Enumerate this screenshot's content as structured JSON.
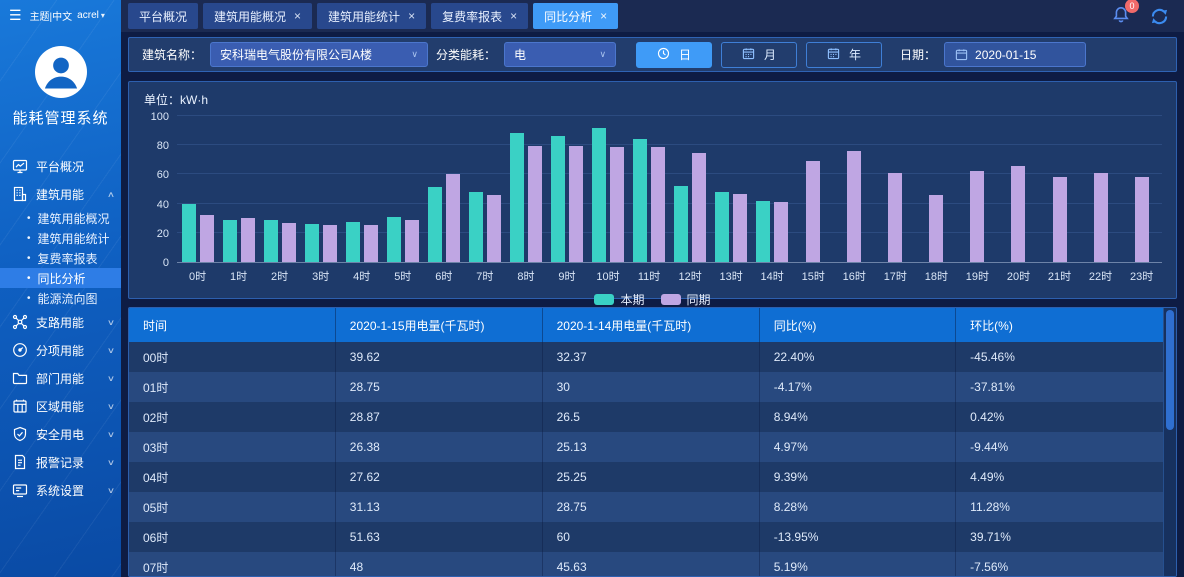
{
  "app": {
    "title": "能耗管理系统"
  },
  "icons": {
    "hamburger": "☰",
    "caret_down": "▾",
    "chevron_up": "∧",
    "chevron_down": "∨",
    "select_caret": "∨",
    "close": "×",
    "bullet": "•"
  },
  "topbar": {
    "theme_label": "主题|中文",
    "user": "acrel",
    "notification_count": "0",
    "tabs": [
      {
        "label": "平台概况",
        "closable": false,
        "active": false
      },
      {
        "label": "建筑用能概况",
        "closable": true,
        "active": false
      },
      {
        "label": "建筑用能统计",
        "closable": true,
        "active": false
      },
      {
        "label": "复费率报表",
        "closable": true,
        "active": false
      },
      {
        "label": "同比分析",
        "closable": true,
        "active": true
      }
    ]
  },
  "sidebar": {
    "items": [
      {
        "label": "平台概况",
        "icon": "monitor-icon",
        "chevron": false
      },
      {
        "label": "建筑用能",
        "icon": "building-icon",
        "chevron": true,
        "expanded": true,
        "children": [
          "建筑用能概况",
          "建筑用能统计",
          "复费率报表",
          "同比分析",
          "能源流向图"
        ],
        "active_child": "同比分析"
      },
      {
        "label": "支路用能",
        "icon": "branch-icon",
        "chevron": true
      },
      {
        "label": "分项用能",
        "icon": "gauge-icon",
        "chevron": true
      },
      {
        "label": "部门用能",
        "icon": "folder-icon",
        "chevron": true
      },
      {
        "label": "区域用能",
        "icon": "region-icon",
        "chevron": true
      },
      {
        "label": "安全用电",
        "icon": "shield-icon",
        "chevron": true
      },
      {
        "label": "报警记录",
        "icon": "alarm-doc-icon",
        "chevron": true
      },
      {
        "label": "系统设置",
        "icon": "settings-icon",
        "chevron": true
      }
    ]
  },
  "filters": {
    "building_label": "建筑名称：",
    "building_value": "安科瑞电气股份有限公司A楼",
    "energy_label": "分类能耗：",
    "energy_value": "电",
    "period_buttons": [
      {
        "label": "日",
        "icon": "clock-icon",
        "active": true
      },
      {
        "label": "月",
        "icon": "calendar-icon",
        "active": false
      },
      {
        "label": "年",
        "icon": "calendar-icon",
        "active": false
      }
    ],
    "date_label": "日期：",
    "date_value": "2020-01-15"
  },
  "chart_data": {
    "type": "bar",
    "title": "单位：kW·h",
    "categories": [
      "0时",
      "1时",
      "2时",
      "3时",
      "4时",
      "5时",
      "6时",
      "7时",
      "8时",
      "9时",
      "10时",
      "11时",
      "12时",
      "13时",
      "14时",
      "15时",
      "16时",
      "17时",
      "18时",
      "19时",
      "20时",
      "21时",
      "22时",
      "23时"
    ],
    "series": [
      {
        "name": "本期",
        "color": "#3ad1c5",
        "values": [
          39.62,
          28.75,
          28.87,
          26.38,
          27.62,
          31.13,
          51.63,
          48,
          88.5,
          86.5,
          92,
          84,
          52,
          48,
          42,
          null,
          null,
          null,
          null,
          null,
          null,
          null,
          null,
          null
        ]
      },
      {
        "name": "同期",
        "color": "#bfa6e3",
        "values": [
          32.37,
          30,
          26.5,
          25.13,
          25.25,
          28.75,
          60,
          45.63,
          79.5,
          79.5,
          78.5,
          78.5,
          74.5,
          46.5,
          41,
          69,
          76,
          61,
          46,
          62,
          65.5,
          58.5,
          61,
          58.5
        ]
      }
    ],
    "ylim": [
      0,
      100
    ],
    "yticks": [
      0,
      20,
      40,
      60,
      80,
      100
    ],
    "grid": true,
    "legend_position": "bottom"
  },
  "table": {
    "headers": [
      "时间",
      "2020-1-15用电量(千瓦时)",
      "2020-1-14用电量(千瓦时)",
      "同比(%)",
      "环比(%)"
    ],
    "rows": [
      [
        "00时",
        "39.62",
        "32.37",
        "22.40%",
        "-45.46%"
      ],
      [
        "01时",
        "28.75",
        "30",
        "-4.17%",
        "-37.81%"
      ],
      [
        "02时",
        "28.87",
        "26.5",
        "8.94%",
        "0.42%"
      ],
      [
        "03时",
        "26.38",
        "25.13",
        "4.97%",
        "-9.44%"
      ],
      [
        "04时",
        "27.62",
        "25.25",
        "9.39%",
        "4.49%"
      ],
      [
        "05时",
        "31.13",
        "28.75",
        "8.28%",
        "11.28%"
      ],
      [
        "06时",
        "51.63",
        "60",
        "-13.95%",
        "39.71%"
      ],
      [
        "07时",
        "48",
        "45.63",
        "5.19%",
        "-7.56%"
      ]
    ]
  },
  "colors": {
    "accent": "#3f9bf7",
    "table_header": "#0f6ed3",
    "row_dark": "#1e3a68",
    "row_light": "#28497f",
    "series_current": "#3ad1c5",
    "series_previous": "#bfa6e3",
    "badge": "#f06a6a"
  }
}
